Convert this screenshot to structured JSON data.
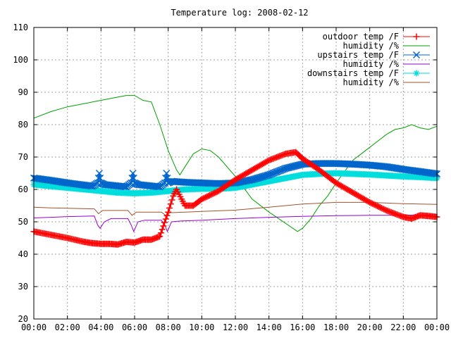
{
  "chart_data": {
    "type": "line",
    "title": "Temperature log: 2008-02-12",
    "xlabel": "",
    "ylabel": "",
    "xlim": [
      0,
      24
    ],
    "ylim": [
      20,
      110
    ],
    "grid": true,
    "legend_position": "top-right",
    "x_tick_labels": [
      "00:00",
      "02:00",
      "04:00",
      "06:00",
      "08:00",
      "10:00",
      "12:00",
      "14:00",
      "16:00",
      "18:00",
      "20:00",
      "22:00",
      "00:00"
    ],
    "y_tick_labels": [
      "20",
      "30",
      "40",
      "50",
      "60",
      "70",
      "80",
      "90",
      "100",
      "110"
    ],
    "series": [
      {
        "name": "outdoor temp /F",
        "color": "#ff0000",
        "marker": "plus",
        "points": [
          [
            0,
            47
          ],
          [
            1,
            46
          ],
          [
            2,
            45
          ],
          [
            3,
            43.8
          ],
          [
            3.5,
            43.4
          ],
          [
            4,
            43.2
          ],
          [
            4.5,
            43.2
          ],
          [
            5,
            43
          ],
          [
            5.5,
            43.8
          ],
          [
            6,
            43.6
          ],
          [
            6.5,
            44.5
          ],
          [
            7,
            44.5
          ],
          [
            7.5,
            45.5
          ],
          [
            8,
            53
          ],
          [
            8.3,
            58
          ],
          [
            8.5,
            60
          ],
          [
            8.8,
            57
          ],
          [
            9,
            55
          ],
          [
            9.5,
            55
          ],
          [
            10,
            57
          ],
          [
            11,
            59.5
          ],
          [
            12,
            63
          ],
          [
            13,
            66
          ],
          [
            14,
            69
          ],
          [
            15,
            71
          ],
          [
            15.6,
            71.5
          ],
          [
            16,
            69.5
          ],
          [
            17,
            66
          ],
          [
            18,
            62
          ],
          [
            19,
            59
          ],
          [
            20,
            56
          ],
          [
            21,
            53.5
          ],
          [
            22,
            51.5
          ],
          [
            22.5,
            51
          ],
          [
            23,
            52
          ],
          [
            23.5,
            51.8
          ],
          [
            24,
            51.5
          ]
        ]
      },
      {
        "name": "humidity /%",
        "color": "#00a000",
        "marker": "none",
        "points": [
          [
            0,
            82
          ],
          [
            1,
            84
          ],
          [
            2,
            85.5
          ],
          [
            3,
            86.5
          ],
          [
            4,
            87.5
          ],
          [
            5,
            88.5
          ],
          [
            5.5,
            89
          ],
          [
            6,
            89
          ],
          [
            6.5,
            87.5
          ],
          [
            7,
            87
          ],
          [
            7.5,
            80
          ],
          [
            8,
            72
          ],
          [
            8.5,
            66
          ],
          [
            8.7,
            64.5
          ],
          [
            9,
            67
          ],
          [
            9.5,
            71
          ],
          [
            10,
            72.5
          ],
          [
            10.5,
            72
          ],
          [
            11,
            70
          ],
          [
            12,
            64
          ],
          [
            13,
            57
          ],
          [
            14,
            53
          ],
          [
            15,
            49.5
          ],
          [
            15.7,
            47
          ],
          [
            16,
            48
          ],
          [
            16.5,
            51
          ],
          [
            17,
            55
          ],
          [
            17.5,
            58
          ],
          [
            18,
            62
          ],
          [
            19,
            69
          ],
          [
            20,
            73
          ],
          [
            20.5,
            75
          ],
          [
            21,
            77
          ],
          [
            21.5,
            78.5
          ],
          [
            22,
            79
          ],
          [
            22.5,
            80
          ],
          [
            23,
            79
          ],
          [
            23.5,
            78.5
          ],
          [
            24,
            79.5
          ]
        ]
      },
      {
        "name": "upstairs temp /F",
        "color": "#0066cc",
        "marker": "x",
        "points": [
          [
            0,
            63.5
          ],
          [
            1,
            62.8
          ],
          [
            2,
            62
          ],
          [
            3.5,
            61
          ],
          [
            3.8,
            62
          ],
          [
            3.9,
            65
          ],
          [
            4.0,
            62
          ],
          [
            4.2,
            61.5
          ],
          [
            5.5,
            60.8
          ],
          [
            5.8,
            62
          ],
          [
            5.9,
            65
          ],
          [
            6.0,
            62
          ],
          [
            6.2,
            61.5
          ],
          [
            7.5,
            60.8
          ],
          [
            7.8,
            62
          ],
          [
            7.9,
            65
          ],
          [
            8.0,
            62
          ],
          [
            8.2,
            62.5
          ],
          [
            9,
            62.2
          ],
          [
            10,
            62
          ],
          [
            11,
            61.8
          ],
          [
            12,
            62
          ],
          [
            13,
            63
          ],
          [
            14,
            64.5
          ],
          [
            15,
            66.5
          ],
          [
            16,
            67.8
          ],
          [
            17,
            68
          ],
          [
            18,
            68
          ],
          [
            19,
            67.8
          ],
          [
            20,
            67.5
          ],
          [
            21,
            67
          ],
          [
            22,
            66.2
          ],
          [
            23,
            65.5
          ],
          [
            24,
            64.8
          ]
        ]
      },
      {
        "name": "humidity /%",
        "color": "#9900cc",
        "marker": "none",
        "points": [
          [
            0,
            51.2
          ],
          [
            1,
            51.4
          ],
          [
            2,
            51.6
          ],
          [
            3.6,
            51.8
          ],
          [
            3.8,
            49
          ],
          [
            3.95,
            48
          ],
          [
            4.2,
            50
          ],
          [
            4.6,
            51
          ],
          [
            5.6,
            51
          ],
          [
            5.8,
            49
          ],
          [
            5.95,
            47
          ],
          [
            6.2,
            50
          ],
          [
            6.6,
            50.5
          ],
          [
            7.6,
            50.5
          ],
          [
            7.8,
            49
          ],
          [
            7.95,
            47
          ],
          [
            8.2,
            50
          ],
          [
            8.6,
            50.2
          ],
          [
            10,
            50.5
          ],
          [
            12,
            51
          ],
          [
            14,
            51.4
          ],
          [
            16,
            51.7
          ],
          [
            18,
            51.9
          ],
          [
            20,
            52
          ],
          [
            22,
            52
          ],
          [
            24,
            52.2
          ]
        ]
      },
      {
        "name": "downstairs temp /F",
        "color": "#00dddd",
        "marker": "star",
        "points": [
          [
            0,
            61.5
          ],
          [
            1,
            61
          ],
          [
            2,
            60.5
          ],
          [
            3,
            60
          ],
          [
            4,
            59.5
          ],
          [
            5,
            59
          ],
          [
            6,
            58.8
          ],
          [
            7,
            59
          ],
          [
            8,
            59.5
          ],
          [
            9,
            60
          ],
          [
            10,
            60.2
          ],
          [
            11,
            60.2
          ],
          [
            12,
            60.5
          ],
          [
            13,
            61.5
          ],
          [
            14,
            62.5
          ],
          [
            15,
            63.5
          ],
          [
            16,
            64.5
          ],
          [
            17,
            64.8
          ],
          [
            18,
            65
          ],
          [
            19,
            64.8
          ],
          [
            20,
            64.6
          ],
          [
            21,
            64.3
          ],
          [
            22,
            64
          ],
          [
            23,
            63.8
          ],
          [
            24,
            63.5
          ]
        ]
      },
      {
        "name": "humidity /%",
        "color": "#a0522d",
        "marker": "none",
        "points": [
          [
            0,
            54.5
          ],
          [
            1,
            54.3
          ],
          [
            2,
            54.2
          ],
          [
            3.6,
            54
          ],
          [
            3.85,
            52.5
          ],
          [
            4.1,
            53.5
          ],
          [
            5.6,
            53.5
          ],
          [
            5.85,
            52
          ],
          [
            6.1,
            53
          ],
          [
            7.6,
            53
          ],
          [
            7.85,
            52
          ],
          [
            8.1,
            52.8
          ],
          [
            9,
            53
          ],
          [
            10,
            53.2
          ],
          [
            12,
            53.6
          ],
          [
            14,
            54.5
          ],
          [
            16,
            55.5
          ],
          [
            18,
            56
          ],
          [
            20,
            56
          ],
          [
            22,
            55.6
          ],
          [
            24,
            55.4
          ]
        ]
      }
    ]
  }
}
